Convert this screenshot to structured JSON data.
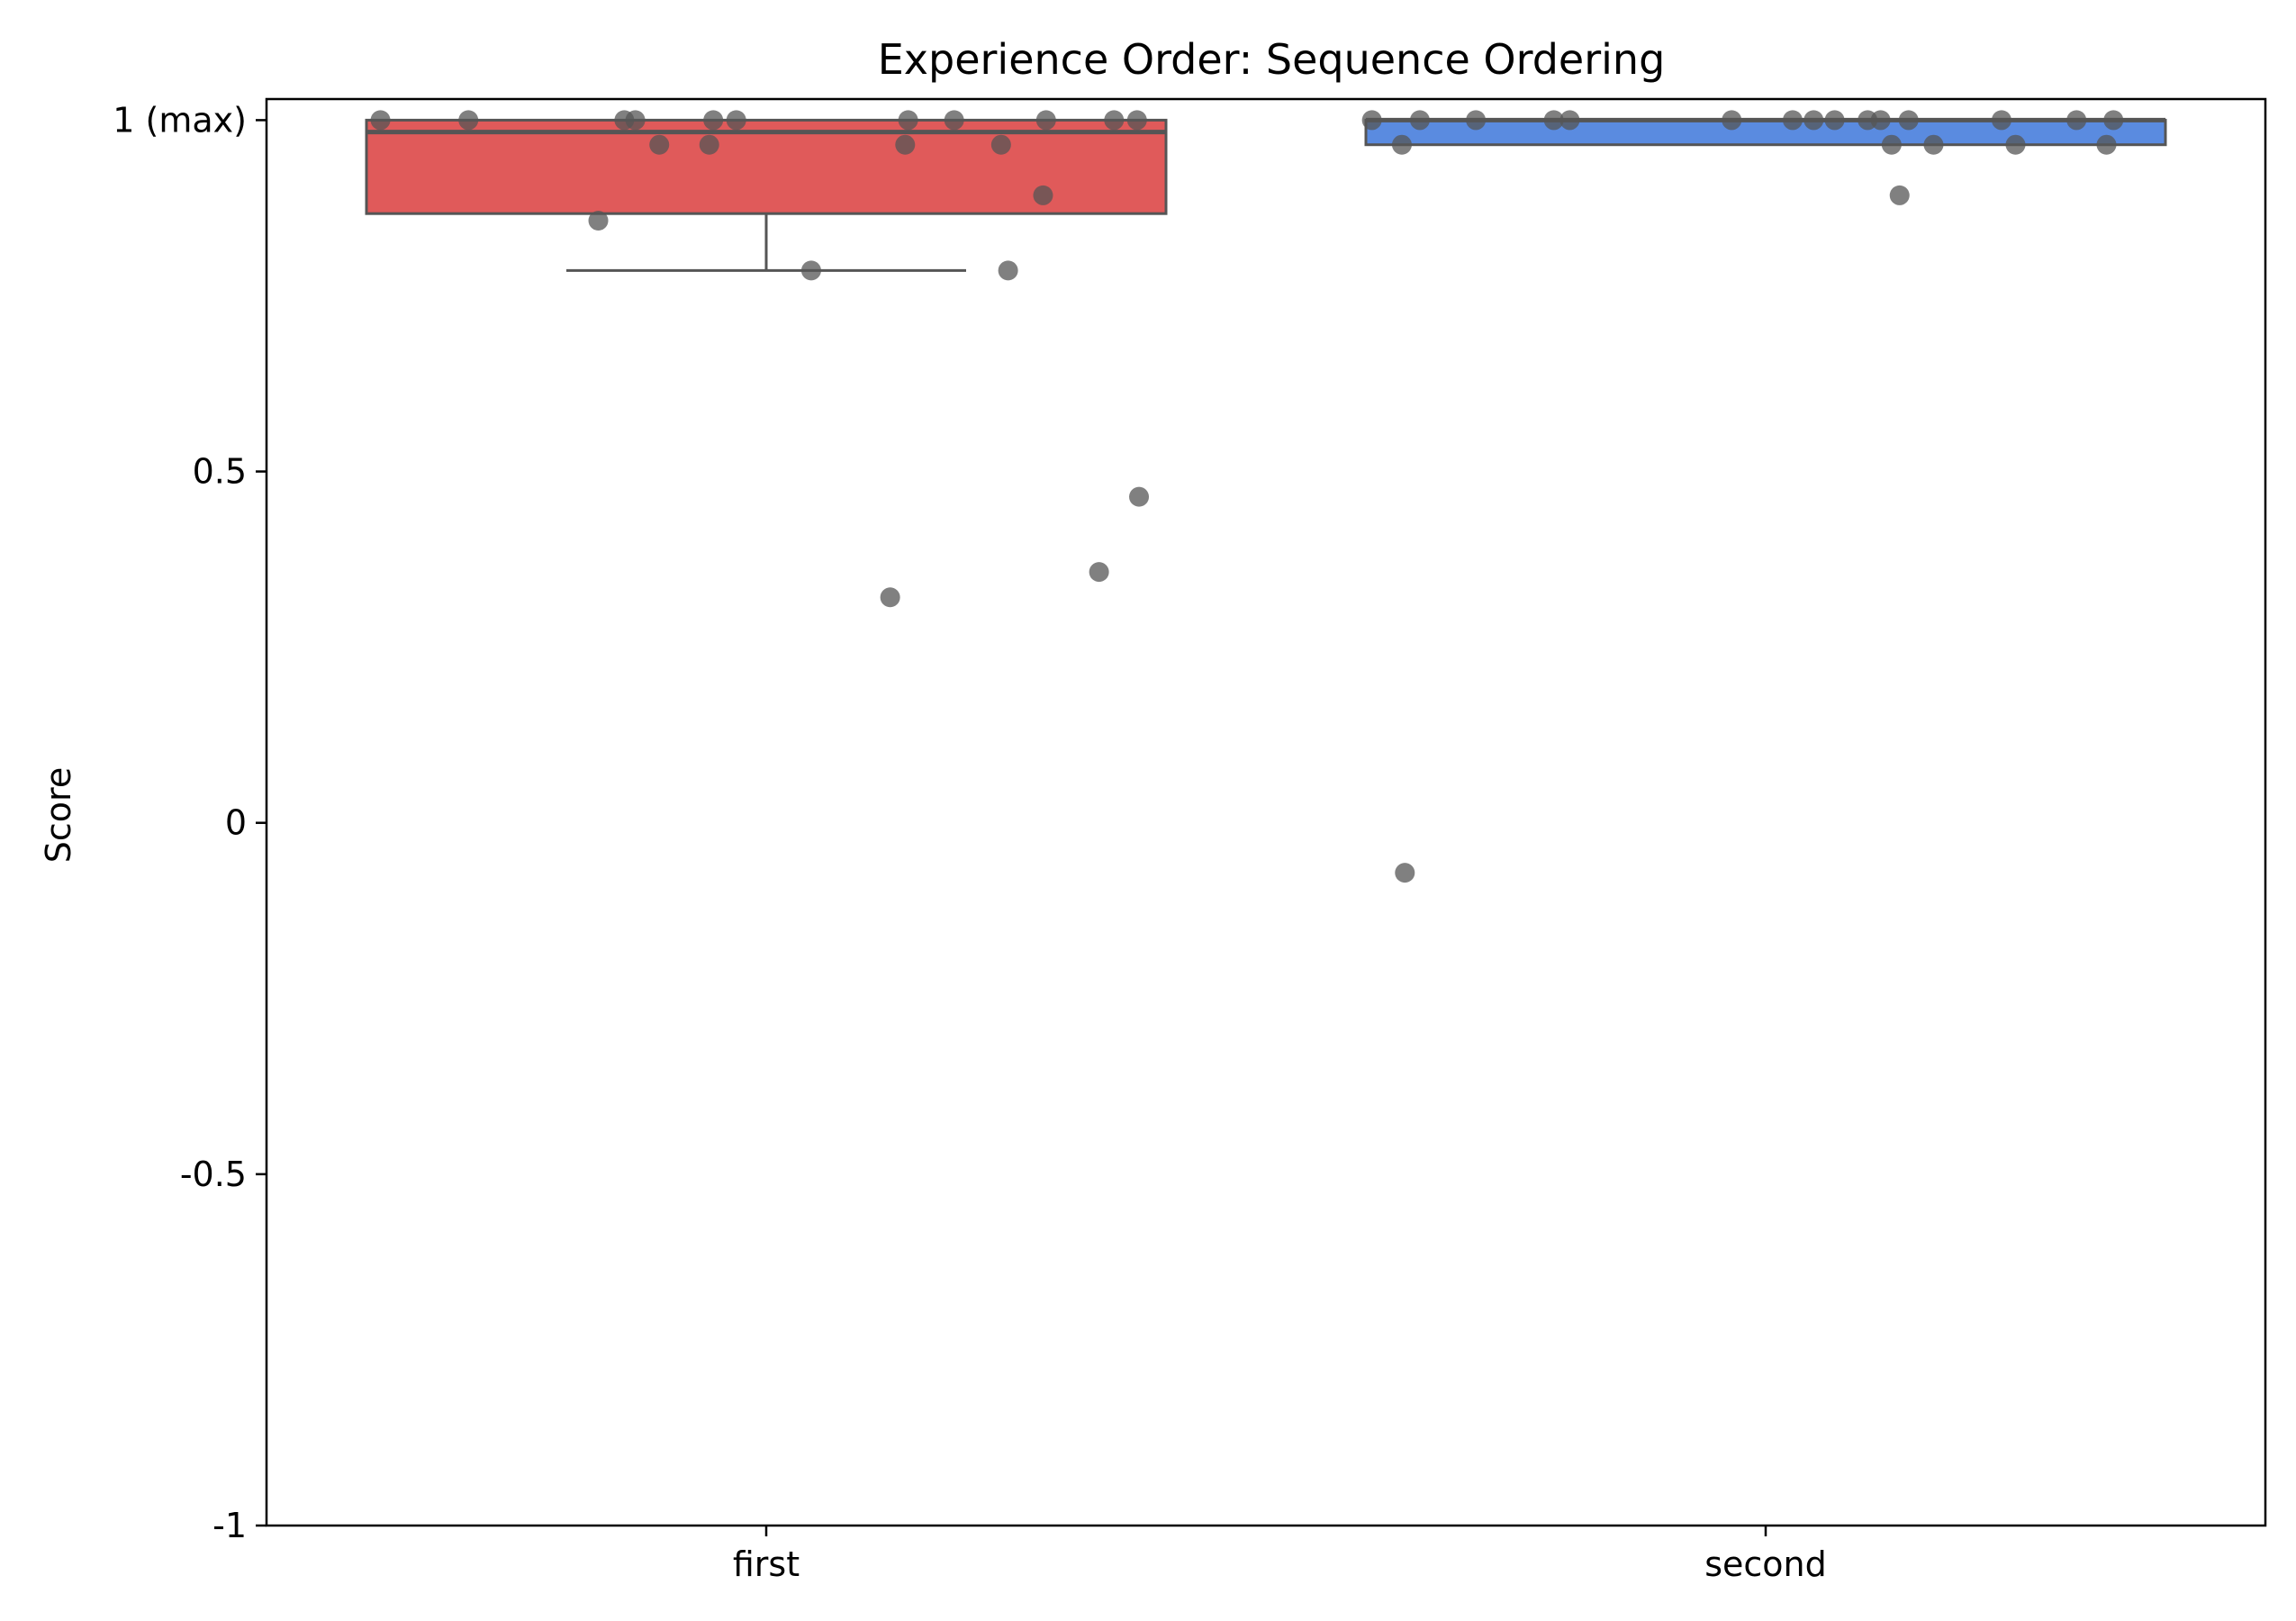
{
  "chart_data": {
    "type": "box",
    "title": "Experience Order: Sequence Ordering",
    "xlabel": "",
    "ylabel": "Score",
    "ylim": [
      -1,
      1.03
    ],
    "y_ticks": [
      {
        "value": 1,
        "label": "1 (max)"
      },
      {
        "value": 0.5,
        "label": "0.5"
      },
      {
        "value": 0,
        "label": "0"
      },
      {
        "value": -0.5,
        "label": "-0.5"
      },
      {
        "value": -1,
        "label": "-1"
      }
    ],
    "grid": false,
    "categories": [
      "first",
      "second"
    ],
    "boxes": [
      {
        "category": "first",
        "color": "#e05a5a",
        "q1": 0.867,
        "median": 0.983,
        "q3": 1.0,
        "whisker_low": 0.786,
        "whisker_high": 1.0
      },
      {
        "category": "second",
        "color": "#5a8be0",
        "q1": 0.965,
        "median": 1.0,
        "q3": 1.0,
        "whisker_low": 0.965,
        "whisker_high": 1.0
      }
    ],
    "points": [
      {
        "category": "first",
        "offset": -0.386,
        "y": 1.0
      },
      {
        "category": "first",
        "offset": -0.298,
        "y": 1.0
      },
      {
        "category": "first",
        "offset": -0.142,
        "y": 1.0
      },
      {
        "category": "first",
        "offset": -0.131,
        "y": 1.0
      },
      {
        "category": "first",
        "offset": -0.053,
        "y": 1.0
      },
      {
        "category": "first",
        "offset": -0.03,
        "y": 1.0
      },
      {
        "category": "first",
        "offset": 0.142,
        "y": 1.0
      },
      {
        "category": "first",
        "offset": 0.188,
        "y": 1.0
      },
      {
        "category": "first",
        "offset": 0.28,
        "y": 1.0
      },
      {
        "category": "first",
        "offset": 0.348,
        "y": 1.0
      },
      {
        "category": "first",
        "offset": 0.371,
        "y": 1.0
      },
      {
        "category": "first",
        "offset": -0.107,
        "y": 0.965
      },
      {
        "category": "first",
        "offset": -0.057,
        "y": 0.965
      },
      {
        "category": "first",
        "offset": 0.139,
        "y": 0.965
      },
      {
        "category": "first",
        "offset": 0.235,
        "y": 0.965
      },
      {
        "category": "first",
        "offset": 0.277,
        "y": 0.893
      },
      {
        "category": "first",
        "offset": -0.168,
        "y": 0.857
      },
      {
        "category": "first",
        "offset": 0.045,
        "y": 0.786
      },
      {
        "category": "first",
        "offset": 0.242,
        "y": 0.786
      },
      {
        "category": "first",
        "offset": 0.373,
        "y": 0.464
      },
      {
        "category": "first",
        "offset": 0.333,
        "y": 0.357
      },
      {
        "category": "first",
        "offset": 0.124,
        "y": 0.321
      },
      {
        "category": "second",
        "offset": -0.394,
        "y": 1.0
      },
      {
        "category": "second",
        "offset": -0.346,
        "y": 1.0
      },
      {
        "category": "second",
        "offset": -0.29,
        "y": 1.0
      },
      {
        "category": "second",
        "offset": -0.212,
        "y": 1.0
      },
      {
        "category": "second",
        "offset": -0.196,
        "y": 1.0
      },
      {
        "category": "second",
        "offset": -0.034,
        "y": 1.0
      },
      {
        "category": "second",
        "offset": 0.027,
        "y": 1.0
      },
      {
        "category": "second",
        "offset": 0.048,
        "y": 1.0
      },
      {
        "category": "second",
        "offset": 0.069,
        "y": 1.0
      },
      {
        "category": "second",
        "offset": 0.102,
        "y": 1.0
      },
      {
        "category": "second",
        "offset": 0.115,
        "y": 1.0
      },
      {
        "category": "second",
        "offset": 0.143,
        "y": 1.0
      },
      {
        "category": "second",
        "offset": 0.236,
        "y": 1.0
      },
      {
        "category": "second",
        "offset": 0.311,
        "y": 1.0
      },
      {
        "category": "second",
        "offset": 0.348,
        "y": 1.0
      },
      {
        "category": "second",
        "offset": -0.364,
        "y": 0.965
      },
      {
        "category": "second",
        "offset": 0.126,
        "y": 0.965
      },
      {
        "category": "second",
        "offset": 0.168,
        "y": 0.965
      },
      {
        "category": "second",
        "offset": 0.25,
        "y": 0.965
      },
      {
        "category": "second",
        "offset": 0.341,
        "y": 0.965
      },
      {
        "category": "second",
        "offset": 0.134,
        "y": 0.893
      },
      {
        "category": "second",
        "offset": -0.361,
        "y": -0.071
      }
    ],
    "point_color": "#555555"
  }
}
